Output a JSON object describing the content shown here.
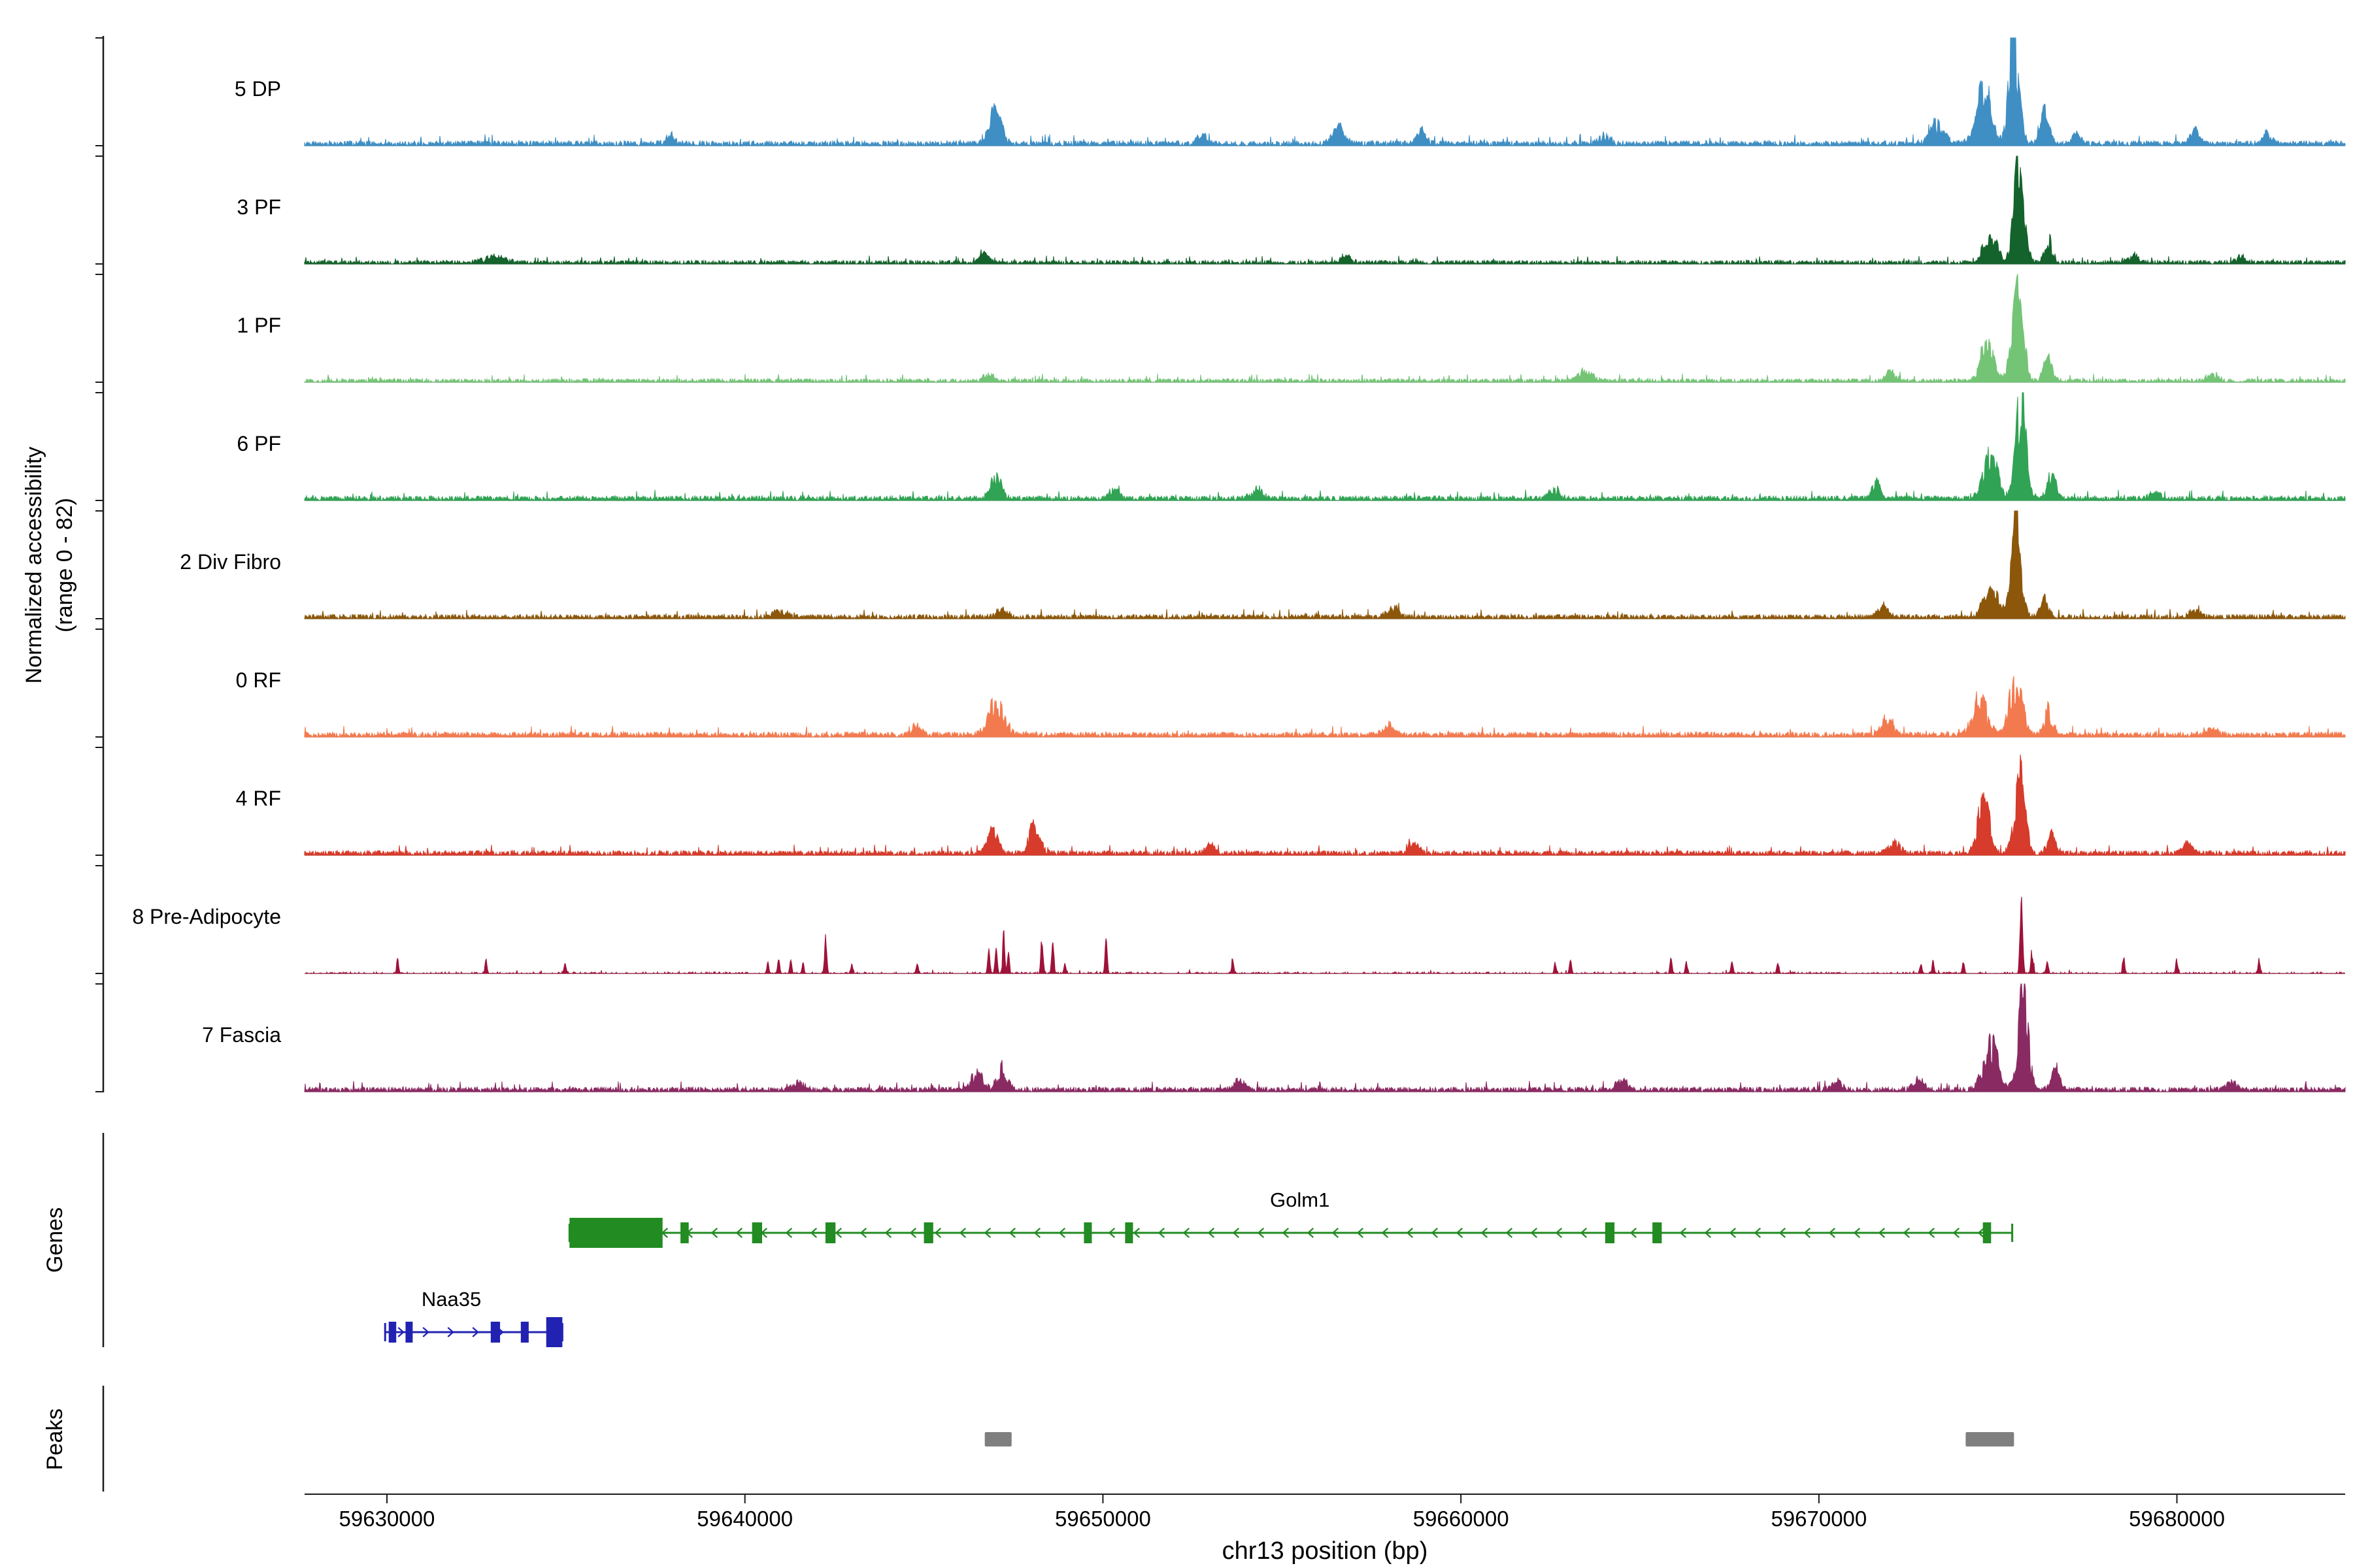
{
  "y_axis": {
    "label_line1": "Normalized accessibility",
    "label_line2": "(range 0 - 82)"
  },
  "sections": {
    "genes_label": "Genes",
    "peaks_label": "Peaks"
  },
  "x_axis": {
    "title": "chr13 position (bp)",
    "ticks": [
      59630000,
      59640000,
      59650000,
      59660000,
      59670000,
      59680000
    ]
  },
  "chart_data": {
    "type": "area",
    "description": "Normalized chromatin accessibility coverage tracks per cluster with gene models and peak calls",
    "genome_range": {
      "chrom": "chr13",
      "start": 59627700,
      "end": 59684700
    },
    "ylim": [
      0,
      82
    ],
    "tracks": [
      {
        "name": "5 DP",
        "color": "#3f8fc4",
        "seed": 11,
        "noise": 0.03,
        "noise_density": 0.8,
        "peaks": [
          {
            "c": 59637900,
            "s": 120,
            "h": 0.08
          },
          {
            "c": 59647000,
            "s": 160,
            "h": 0.3
          },
          {
            "c": 59652800,
            "s": 120,
            "h": 0.1
          },
          {
            "c": 59656600,
            "s": 160,
            "h": 0.18
          },
          {
            "c": 59658900,
            "s": 120,
            "h": 0.12
          },
          {
            "c": 59664000,
            "s": 140,
            "h": 0.08
          },
          {
            "c": 59673300,
            "s": 200,
            "h": 0.2
          },
          {
            "c": 59674600,
            "s": 200,
            "h": 0.5
          },
          {
            "c": 59675450,
            "s": 140,
            "h": 0.95
          },
          {
            "c": 59676300,
            "s": 120,
            "h": 0.28
          },
          {
            "c": 59677200,
            "s": 100,
            "h": 0.12
          },
          {
            "c": 59680500,
            "s": 140,
            "h": 0.11
          },
          {
            "c": 59682500,
            "s": 120,
            "h": 0.09
          }
        ]
      },
      {
        "name": "3 PF",
        "color": "#14632c",
        "seed": 22,
        "noise": 0.022,
        "noise_density": 0.72,
        "peaks": [
          {
            "c": 59633000,
            "s": 300,
            "h": 0.05
          },
          {
            "c": 59646700,
            "s": 120,
            "h": 0.08
          },
          {
            "c": 59656800,
            "s": 120,
            "h": 0.07
          },
          {
            "c": 59674800,
            "s": 180,
            "h": 0.28
          },
          {
            "c": 59675600,
            "s": 140,
            "h": 0.98
          },
          {
            "c": 59676400,
            "s": 100,
            "h": 0.22
          },
          {
            "c": 59678800,
            "s": 120,
            "h": 0.07
          },
          {
            "c": 59681800,
            "s": 140,
            "h": 0.07
          }
        ]
      },
      {
        "name": "1 PF",
        "color": "#74c476",
        "seed": 33,
        "noise": 0.022,
        "noise_density": 0.7,
        "peaks": [
          {
            "c": 59646800,
            "s": 120,
            "h": 0.07
          },
          {
            "c": 59663500,
            "s": 200,
            "h": 0.1
          },
          {
            "c": 59672000,
            "s": 150,
            "h": 0.09
          },
          {
            "c": 59674700,
            "s": 180,
            "h": 0.32
          },
          {
            "c": 59675550,
            "s": 150,
            "h": 0.85
          },
          {
            "c": 59676400,
            "s": 120,
            "h": 0.2
          },
          {
            "c": 59681000,
            "s": 140,
            "h": 0.07
          }
        ]
      },
      {
        "name": "6 PF",
        "color": "#31a354",
        "seed": 44,
        "noise": 0.028,
        "noise_density": 0.8,
        "peaks": [
          {
            "c": 59647000,
            "s": 150,
            "h": 0.2
          },
          {
            "c": 59650300,
            "s": 120,
            "h": 0.1
          },
          {
            "c": 59654300,
            "s": 150,
            "h": 0.1
          },
          {
            "c": 59662600,
            "s": 150,
            "h": 0.09
          },
          {
            "c": 59671600,
            "s": 120,
            "h": 0.15
          },
          {
            "c": 59674800,
            "s": 200,
            "h": 0.38
          },
          {
            "c": 59675650,
            "s": 140,
            "h": 0.92
          },
          {
            "c": 59676500,
            "s": 120,
            "h": 0.22
          },
          {
            "c": 59679400,
            "s": 120,
            "h": 0.09
          }
        ]
      },
      {
        "name": "2 Div Fibro",
        "color": "#8c570b",
        "seed": 55,
        "noise": 0.026,
        "noise_density": 0.76,
        "peaks": [
          {
            "c": 59641000,
            "s": 150,
            "h": 0.07
          },
          {
            "c": 59647200,
            "s": 150,
            "h": 0.09
          },
          {
            "c": 59658100,
            "s": 150,
            "h": 0.1
          },
          {
            "c": 59671800,
            "s": 150,
            "h": 0.08
          },
          {
            "c": 59674800,
            "s": 180,
            "h": 0.32
          },
          {
            "c": 59675500,
            "s": 140,
            "h": 0.85
          },
          {
            "c": 59676300,
            "s": 110,
            "h": 0.18
          },
          {
            "c": 59680500,
            "s": 140,
            "h": 0.07
          }
        ]
      },
      {
        "name": "0 RF",
        "color": "#f37a4f",
        "seed": 66,
        "noise": 0.03,
        "noise_density": 0.82,
        "peaks": [
          {
            "c": 59644800,
            "s": 120,
            "h": 0.08
          },
          {
            "c": 59647000,
            "s": 220,
            "h": 0.27
          },
          {
            "c": 59658000,
            "s": 150,
            "h": 0.08
          },
          {
            "c": 59671900,
            "s": 170,
            "h": 0.15
          },
          {
            "c": 59674500,
            "s": 200,
            "h": 0.33
          },
          {
            "c": 59675500,
            "s": 170,
            "h": 0.52
          },
          {
            "c": 59676400,
            "s": 120,
            "h": 0.22
          },
          {
            "c": 59681000,
            "s": 140,
            "h": 0.08
          }
        ]
      },
      {
        "name": "4 RF",
        "color": "#d63b2b",
        "seed": 77,
        "noise": 0.028,
        "noise_density": 0.8,
        "peaks": [
          {
            "c": 59646900,
            "s": 140,
            "h": 0.25
          },
          {
            "c": 59648100,
            "s": 140,
            "h": 0.27
          },
          {
            "c": 59653000,
            "s": 120,
            "h": 0.08
          },
          {
            "c": 59658700,
            "s": 140,
            "h": 0.09
          },
          {
            "c": 59672100,
            "s": 150,
            "h": 0.1
          },
          {
            "c": 59674600,
            "s": 150,
            "h": 0.55
          },
          {
            "c": 59675600,
            "s": 150,
            "h": 0.7
          },
          {
            "c": 59676500,
            "s": 110,
            "h": 0.16
          },
          {
            "c": 59680300,
            "s": 140,
            "h": 0.08
          }
        ]
      },
      {
        "name": "8 Pre-Adipocyte",
        "color": "#9f1239",
        "seed": 88,
        "noise": 0.01,
        "noise_density": 0.25,
        "peaks": [
          {
            "c": 59630300,
            "s": 30,
            "h": 0.12
          },
          {
            "c": 59632770,
            "s": 30,
            "h": 0.1
          },
          {
            "c": 59634980,
            "s": 30,
            "h": 0.12
          },
          {
            "c": 59640640,
            "s": 30,
            "h": 0.1
          },
          {
            "c": 59640940,
            "s": 30,
            "h": 0.12
          },
          {
            "c": 59641280,
            "s": 30,
            "h": 0.1
          },
          {
            "c": 59641620,
            "s": 30,
            "h": 0.1
          },
          {
            "c": 59642260,
            "s": 30,
            "h": 0.45
          },
          {
            "c": 59642980,
            "s": 30,
            "h": 0.1
          },
          {
            "c": 59644810,
            "s": 30,
            "h": 0.12
          },
          {
            "c": 59646810,
            "s": 30,
            "h": 0.2
          },
          {
            "c": 59647020,
            "s": 30,
            "h": 0.4
          },
          {
            "c": 59647230,
            "s": 30,
            "h": 0.35
          },
          {
            "c": 59647360,
            "s": 30,
            "h": 0.15
          },
          {
            "c": 59648300,
            "s": 30,
            "h": 0.38
          },
          {
            "c": 59648600,
            "s": 30,
            "h": 0.3
          },
          {
            "c": 59648940,
            "s": 30,
            "h": 0.12
          },
          {
            "c": 59650090,
            "s": 30,
            "h": 0.25
          },
          {
            "c": 59653620,
            "s": 30,
            "h": 0.15
          },
          {
            "c": 59662640,
            "s": 30,
            "h": 0.1
          },
          {
            "c": 59663060,
            "s": 30,
            "h": 0.1
          },
          {
            "c": 59665870,
            "s": 30,
            "h": 0.12
          },
          {
            "c": 59666300,
            "s": 30,
            "h": 0.1
          },
          {
            "c": 59667570,
            "s": 30,
            "h": 0.12
          },
          {
            "c": 59668850,
            "s": 30,
            "h": 0.1
          },
          {
            "c": 59672850,
            "s": 30,
            "h": 0.12
          },
          {
            "c": 59673190,
            "s": 30,
            "h": 0.1
          },
          {
            "c": 59674040,
            "s": 30,
            "h": 0.12
          },
          {
            "c": 59675660,
            "s": 35,
            "h": 1.0
          },
          {
            "c": 59675960,
            "s": 30,
            "h": 0.25
          },
          {
            "c": 59676380,
            "s": 30,
            "h": 0.12
          },
          {
            "c": 59678510,
            "s": 30,
            "h": 0.15
          },
          {
            "c": 59680000,
            "s": 30,
            "h": 0.12
          },
          {
            "c": 59682300,
            "s": 30,
            "h": 0.12
          }
        ]
      },
      {
        "name": "7 Fascia",
        "color": "#8a2a62",
        "seed": 99,
        "noise": 0.028,
        "noise_density": 0.8,
        "peaks": [
          {
            "c": 59641500,
            "s": 150,
            "h": 0.07
          },
          {
            "c": 59646500,
            "s": 150,
            "h": 0.17
          },
          {
            "c": 59647200,
            "s": 150,
            "h": 0.19
          },
          {
            "c": 59653800,
            "s": 150,
            "h": 0.08
          },
          {
            "c": 59664500,
            "s": 170,
            "h": 0.09
          },
          {
            "c": 59670500,
            "s": 150,
            "h": 0.08
          },
          {
            "c": 59672800,
            "s": 150,
            "h": 0.09
          },
          {
            "c": 59674800,
            "s": 200,
            "h": 0.42
          },
          {
            "c": 59675700,
            "s": 140,
            "h": 0.85
          },
          {
            "c": 59676600,
            "s": 120,
            "h": 0.2
          },
          {
            "c": 59681500,
            "s": 140,
            "h": 0.07
          }
        ]
      }
    ],
    "genes": [
      {
        "name": "Golm1",
        "color": "#228b22",
        "strand": "-",
        "start": 59635100,
        "end": 59675400,
        "utr_box": [
          59635100,
          59637700
        ],
        "exons": [
          [
            59638200,
            59638430
          ],
          [
            59640200,
            59640480
          ],
          [
            59642250,
            59642530
          ],
          [
            59645000,
            59645260
          ],
          [
            59649470,
            59649690
          ],
          [
            59650620,
            59650840
          ],
          [
            59664030,
            59664290
          ],
          [
            59665350,
            59665610
          ],
          [
            59674580,
            59674810
          ]
        ],
        "label_x": 59655500
      },
      {
        "name": "Naa35",
        "color": "#2222b2",
        "strand": "+",
        "start": 59629950,
        "end": 59634900,
        "utr_box": [
          59634450,
          59634900
        ],
        "exons": [
          [
            59630050,
            59630260
          ],
          [
            59630520,
            59630720
          ],
          [
            59632900,
            59633160
          ],
          [
            59633740,
            59633960
          ]
        ],
        "label_x": 59631800
      }
    ],
    "peak_regions": [
      [
        59646700,
        59647450
      ],
      [
        59674100,
        59675450
      ]
    ]
  }
}
